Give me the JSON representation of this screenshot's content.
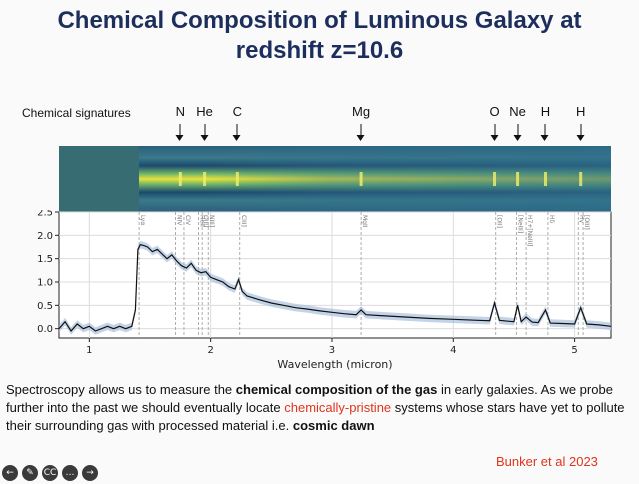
{
  "title_line1": "Chemical Composition of Luminous Galaxy at",
  "title_line2": "redshift z=10.6",
  "signatures_label": "Chemical signatures",
  "element_markers": [
    {
      "label": "N",
      "wavelength": 1.75
    },
    {
      "label": "He",
      "wavelength": 1.95
    },
    {
      "label": "C",
      "wavelength": 2.22
    },
    {
      "label": "Mg",
      "wavelength": 3.24
    },
    {
      "label": "O",
      "wavelength": 4.34
    },
    {
      "label": "Ne",
      "wavelength": 4.53
    },
    {
      "label": "H",
      "wavelength": 4.76
    },
    {
      "label": "H",
      "wavelength": 5.05
    }
  ],
  "chart_data": {
    "type": "line",
    "xlabel": "Wavelength (micron)",
    "ylabel": "",
    "xlim": [
      0.75,
      5.3
    ],
    "ylim": [
      -0.2,
      2.5
    ],
    "xticks": [
      1,
      2,
      3,
      4,
      5
    ],
    "yticks": [
      0.0,
      0.5,
      1.0,
      1.5,
      2.0,
      2.5
    ],
    "ytick_labels": [
      "0.0",
      "0.5",
      "1.0",
      "1.5",
      "2.0",
      "2.5"
    ],
    "line_labels": [
      {
        "text": "Lyα",
        "x": 1.41
      },
      {
        "text": "NIV",
        "x": 1.71
      },
      {
        "text": "CIV",
        "x": 1.78
      },
      {
        "text": "HeII",
        "x": 1.9
      },
      {
        "text": "OIII]",
        "x": 1.93
      },
      {
        "text": "NIII]",
        "x": 1.98
      },
      {
        "text": "CIII]",
        "x": 2.24
      },
      {
        "text": "MgII",
        "x": 3.24
      },
      {
        "text": "[OII]",
        "x": 4.35
      },
      {
        "text": "[NeIII]",
        "x": 4.52
      },
      {
        "text": "H7+[NeIII]",
        "x": 4.6
      },
      {
        "text": "Hδ",
        "x": 4.78
      },
      {
        "text": "Hγ",
        "x": 5.03
      },
      {
        "text": "[OIII]",
        "x": 5.07
      }
    ],
    "series": [
      {
        "x": [
          0.75,
          0.8,
          0.85,
          0.9,
          0.95,
          1.0,
          1.05,
          1.1,
          1.15,
          1.2,
          1.25,
          1.3,
          1.35,
          1.38,
          1.4,
          1.42,
          1.45,
          1.48,
          1.52,
          1.56,
          1.6,
          1.64,
          1.68,
          1.72,
          1.76,
          1.8,
          1.84,
          1.88,
          1.92,
          1.96,
          2.0,
          2.05,
          2.1,
          2.15,
          2.2,
          2.23,
          2.26,
          2.3,
          2.4,
          2.5,
          2.6,
          2.7,
          2.8,
          2.9,
          3.0,
          3.1,
          3.2,
          3.24,
          3.28,
          3.4,
          3.6,
          3.8,
          4.0,
          4.2,
          4.3,
          4.34,
          4.38,
          4.45,
          4.5,
          4.53,
          4.56,
          4.6,
          4.65,
          4.7,
          4.76,
          4.8,
          4.9,
          5.0,
          5.05,
          5.1,
          5.2,
          5.3
        ],
        "y": [
          0.0,
          0.15,
          -0.05,
          0.1,
          0.0,
          0.05,
          -0.05,
          0.0,
          0.05,
          0.0,
          0.05,
          0.0,
          0.05,
          0.4,
          1.7,
          1.8,
          1.78,
          1.75,
          1.65,
          1.7,
          1.6,
          1.5,
          1.58,
          1.45,
          1.35,
          1.3,
          1.4,
          1.25,
          1.2,
          1.22,
          1.1,
          1.05,
          1.0,
          0.9,
          0.85,
          1.05,
          0.8,
          0.7,
          0.62,
          0.55,
          0.5,
          0.45,
          0.42,
          0.38,
          0.35,
          0.32,
          0.3,
          0.4,
          0.3,
          0.28,
          0.25,
          0.22,
          0.2,
          0.18,
          0.17,
          0.55,
          0.18,
          0.16,
          0.15,
          0.5,
          0.15,
          0.25,
          0.14,
          0.13,
          0.4,
          0.12,
          0.11,
          0.1,
          0.45,
          0.1,
          0.08,
          0.05
        ]
      }
    ],
    "grid": true
  },
  "body_text": {
    "part1": "Spectroscopy allows us to measure the ",
    "bold1": "chemical composition of the gas",
    "part2": " in early galaxies. As we probe further into the past we should eventually locate ",
    "red1": "chemically-pristine",
    "part3": " systems whose stars have yet to pollute their surrounding gas with processed material i.e. ",
    "bold2": "cosmic dawn"
  },
  "credit": "Bunker et al 2023",
  "controls": [
    {
      "icon": "prev-icon",
      "glyph": "←"
    },
    {
      "icon": "pen-icon",
      "glyph": "✎"
    },
    {
      "icon": "captions-icon",
      "glyph": "CC"
    },
    {
      "icon": "more-icon",
      "glyph": "…"
    },
    {
      "icon": "next-icon",
      "glyph": "→"
    }
  ],
  "colors": {
    "title": "#1c2f5c",
    "accent_red": "#e0341b",
    "line": "#111111",
    "band": "#9db8d8"
  }
}
